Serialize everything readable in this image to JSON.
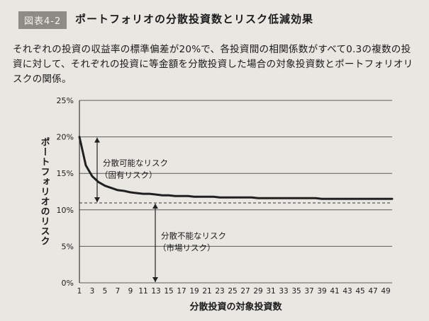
{
  "figure": {
    "badge": "図表4-2",
    "title": "ポートフォリオの分散投資数とリスク低減効果",
    "caption": "それぞれの投資の収益率の標準偏差が20%で、各投資間の相関係数がすべて0.3の複数の投資に対して、それぞれの投資に等金額を分散投資した場合の対象投資数とポートフォリオリスクの関係。"
  },
  "chart_data": {
    "type": "line",
    "title": "ポートフォリオの分散投資数とリスク低減効果",
    "xlabel": "分散投資の対象投資数",
    "ylabel": "ポートフォリオのリスク",
    "xlim": [
      1,
      50
    ],
    "ylim": [
      0,
      25
    ],
    "y_ticks": [
      "0%",
      "5%",
      "10%",
      "15%",
      "20%",
      "25%"
    ],
    "x_ticks": [
      "1",
      "3",
      "5",
      "7",
      "9",
      "11",
      "13",
      "15",
      "17",
      "19",
      "21",
      "23",
      "25",
      "27",
      "29",
      "31",
      "33",
      "35",
      "37",
      "39",
      "41",
      "43",
      "45",
      "47",
      "49"
    ],
    "grid": "horizontal",
    "series": [
      {
        "x": [
          1,
          2,
          3,
          4,
          5,
          6,
          7,
          8,
          9,
          10,
          11,
          12,
          13,
          14,
          15,
          16,
          17,
          18,
          19,
          20,
          21,
          22,
          23,
          24,
          25,
          26,
          27,
          28,
          29,
          30,
          31,
          32,
          33,
          34,
          35,
          36,
          37,
          38,
          39,
          40,
          41,
          42,
          43,
          44,
          45,
          46,
          47,
          48,
          49,
          50
        ],
        "values": [
          20.0,
          16.1,
          14.6,
          13.8,
          13.3,
          13.0,
          12.7,
          12.6,
          12.4,
          12.3,
          12.2,
          12.2,
          12.1,
          12.0,
          12.0,
          11.9,
          11.9,
          11.9,
          11.8,
          11.8,
          11.8,
          11.8,
          11.7,
          11.7,
          11.7,
          11.7,
          11.7,
          11.7,
          11.6,
          11.6,
          11.6,
          11.6,
          11.6,
          11.6,
          11.6,
          11.6,
          11.6,
          11.6,
          11.5,
          11.5,
          11.5,
          11.5,
          11.5,
          11.5,
          11.5,
          11.5,
          11.5,
          11.5,
          11.5,
          11.5
        ]
      }
    ],
    "reference_line": {
      "value": 10.95,
      "style": "dashed"
    },
    "annotations": [
      {
        "text": "分散可能なリスク",
        "subtext": "（固有リスク）",
        "from": 20.0,
        "to": 10.95
      },
      {
        "text": "分散不能なリスク",
        "subtext": "（市場リスク）",
        "from": 10.95,
        "to": 0
      }
    ]
  }
}
